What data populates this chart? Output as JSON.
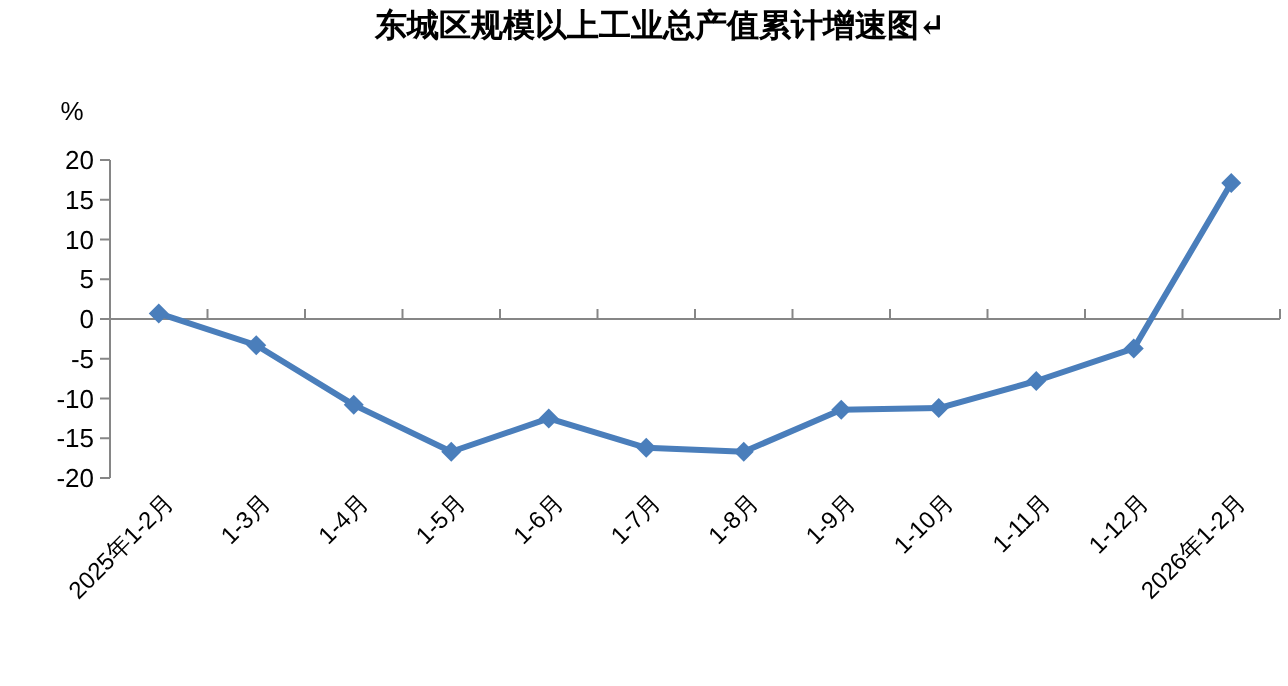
{
  "chart_data": {
    "type": "line",
    "title": "东城区规模以上工业总产值累计增速图↵",
    "ylabel": "%",
    "categories": [
      "2025年1-2月",
      "1-3月",
      "1-4月",
      "1-5月",
      "1-6月",
      "1-7月",
      "1-8月",
      "1-9月",
      "1-10月",
      "1-11月",
      "1-12月",
      "2026年1-2月"
    ],
    "series": [
      {
        "color": "#4a7ebb",
        "values": [
          0.7,
          -3.3,
          -10.8,
          -16.7,
          -12.5,
          -16.2,
          -16.7,
          -11.4,
          -11.2,
          -7.8,
          -3.7,
          17.1
        ]
      }
    ],
    "ylim": [
      -20,
      20
    ],
    "yticks": [
      -20,
      -15,
      -10,
      -5,
      0,
      5,
      10,
      15,
      20
    ],
    "marker": "diamond",
    "line_style": "solid"
  }
}
